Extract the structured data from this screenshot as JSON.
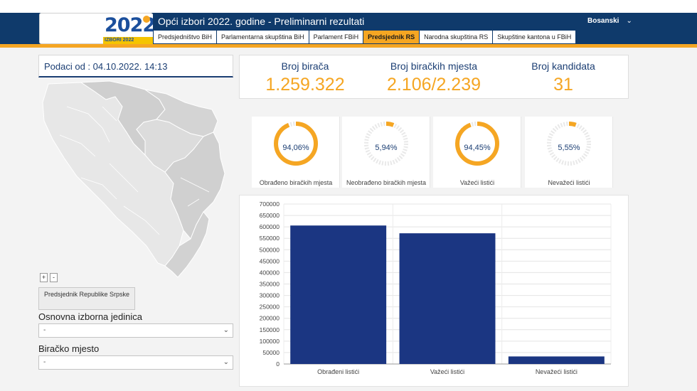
{
  "header": {
    "title": "Opći izbori 2022. godine - Preliminarni rezultati",
    "language": "Bosanski",
    "logo_text": "2022",
    "logo_strip": "IZBORI 2022"
  },
  "tabs": [
    {
      "label": "Predsjedništvo BiH",
      "active": false
    },
    {
      "label": "Parlamentarna skupština BiH",
      "active": false
    },
    {
      "label": "Parlament FBiH",
      "active": false
    },
    {
      "label": "Predsjednik RS",
      "active": true
    },
    {
      "label": "Narodna skupština RS",
      "active": false
    },
    {
      "label": "Skupštine kantona u FBiH",
      "active": false
    }
  ],
  "left": {
    "date_label": "Podaci od : 04.10.2022. 14:13",
    "zoom_in": "+",
    "zoom_out": "-",
    "filter_button": "Predsjednik Republike Srpske",
    "unit_label": "Osnovna izborna jedinica",
    "unit_value": "-",
    "station_label": "Biračko mjesto",
    "station_value": "-"
  },
  "stats": [
    {
      "label": "Broj birača",
      "value": "1.259.322"
    },
    {
      "label": "Broj biračkih mjesta",
      "value": "2.106/2.239"
    },
    {
      "label": "Broj kandidata",
      "value": "31"
    }
  ],
  "gauges": [
    {
      "label": "Obrađeno biračkih mjesta",
      "pct_text": "94,06%",
      "fraction": 0.9406
    },
    {
      "label": "Neobrađeno biračkih mjesta",
      "pct_text": "5,94%",
      "fraction": 0.0594
    },
    {
      "label": "Važeći listići",
      "pct_text": "94,45%",
      "fraction": 0.9445
    },
    {
      "label": "Nevažeći listići",
      "pct_text": "5,55%",
      "fraction": 0.0555
    }
  ],
  "colors": {
    "accent": "#f5a623",
    "navy": "#1b3e73",
    "bar": "#1b3682",
    "gauge_track": "#e9e9e9"
  },
  "chart_data": {
    "type": "bar",
    "categories": [
      "Obrađeni listići",
      "Važeći listići",
      "Nevažeći listići"
    ],
    "values": [
      606000,
      572000,
      33000
    ],
    "ylim": [
      0,
      700000
    ],
    "yticks": [
      0,
      50000,
      100000,
      150000,
      200000,
      250000,
      300000,
      350000,
      400000,
      450000,
      500000,
      550000,
      600000,
      650000,
      700000
    ],
    "grid": true,
    "title": "",
    "xlabel": "",
    "ylabel": ""
  }
}
